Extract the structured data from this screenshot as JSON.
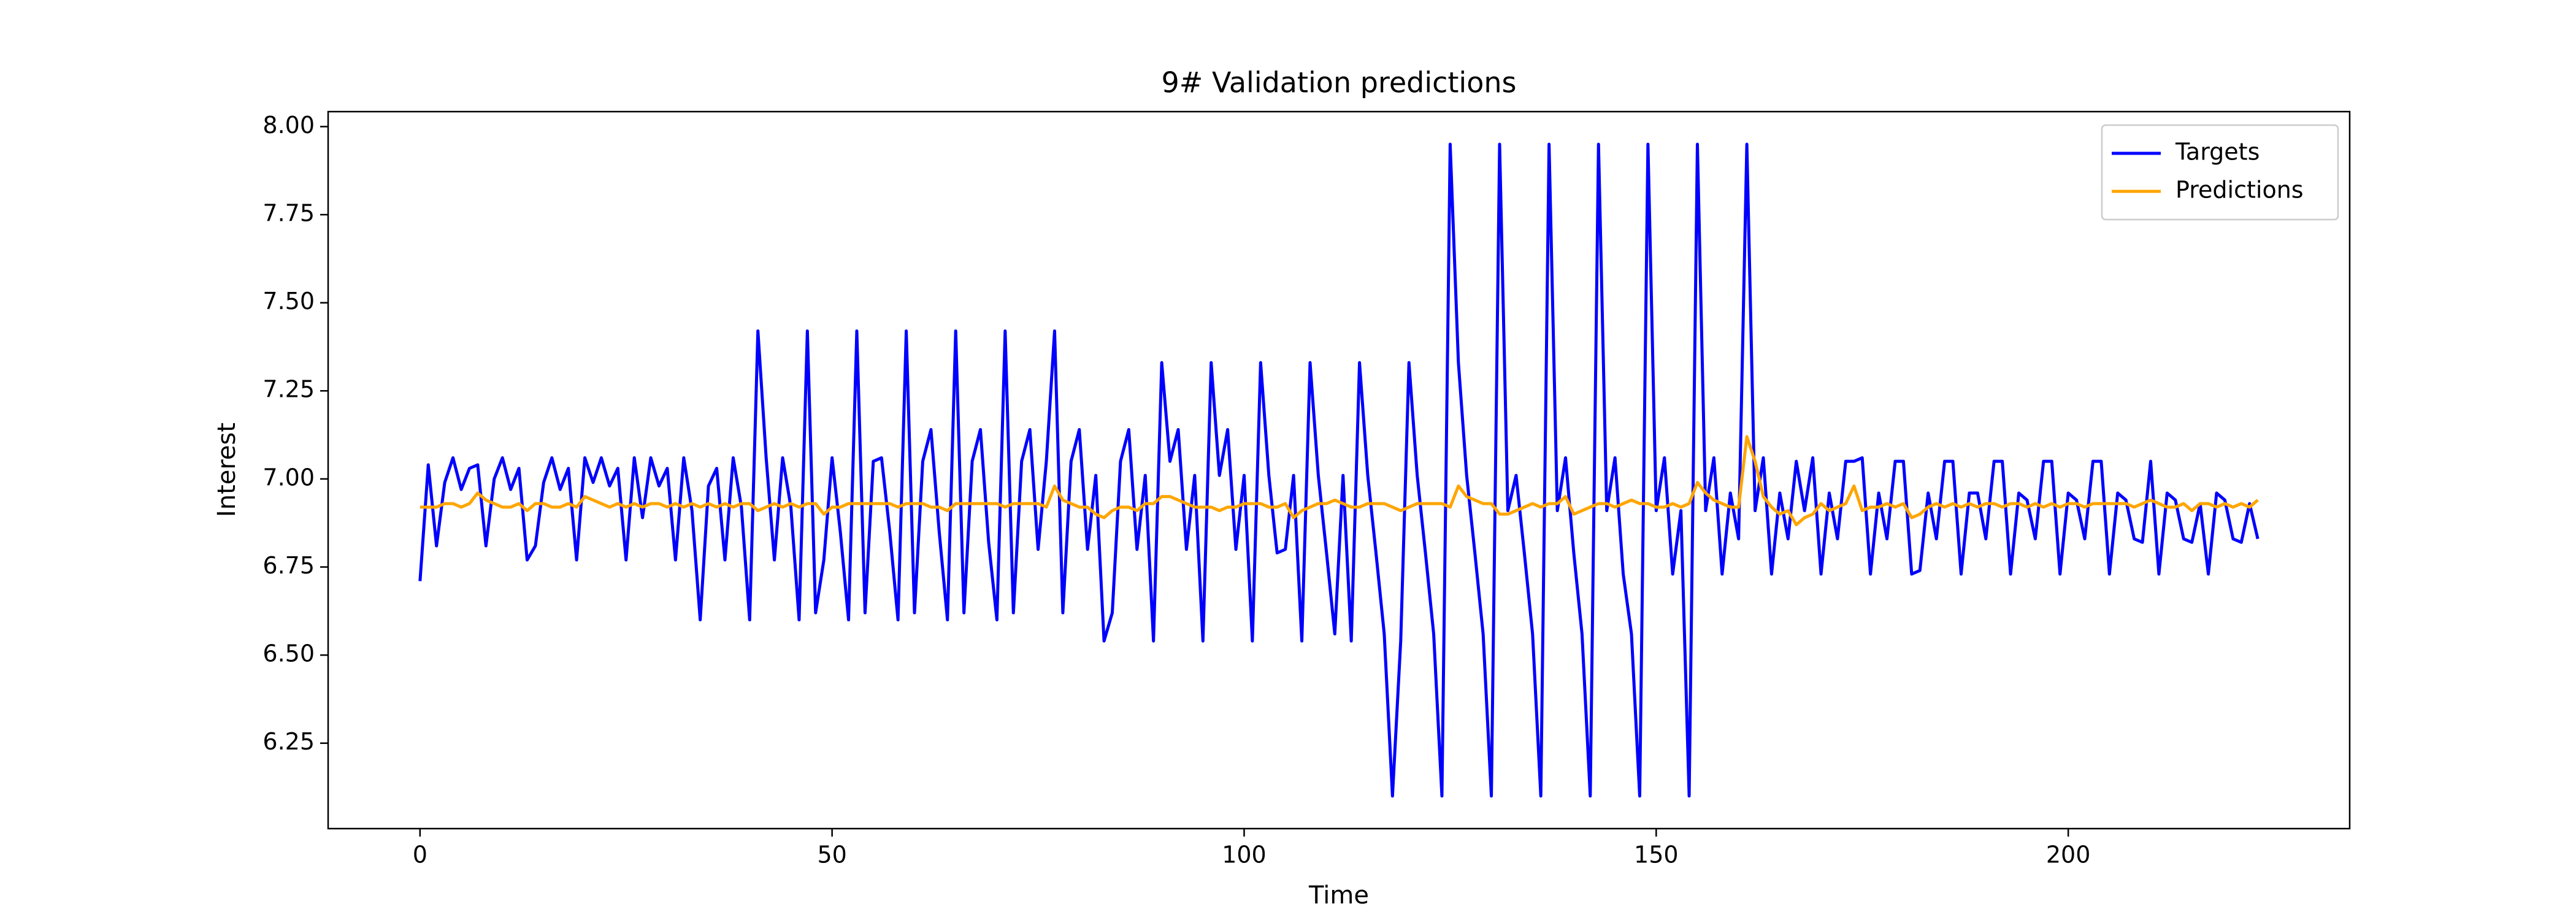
{
  "chart_data": {
    "type": "line",
    "title": "9# Validation predictions",
    "x_label": "Time",
    "y_label": "Interest",
    "x": [
      0,
      1,
      2,
      3,
      4,
      5,
      6,
      7,
      8,
      9,
      10,
      11,
      12,
      13,
      14,
      15,
      16,
      17,
      18,
      19,
      20,
      21,
      22,
      23,
      24,
      25,
      26,
      27,
      28,
      29,
      30,
      31,
      32,
      33,
      34,
      35,
      36,
      37,
      38,
      39,
      40,
      41,
      42,
      43,
      44,
      45,
      46,
      47,
      48,
      49,
      50,
      51,
      52,
      53,
      54,
      55,
      56,
      57,
      58,
      59,
      60,
      61,
      62,
      63,
      64,
      65,
      66,
      67,
      68,
      69,
      70,
      71,
      72,
      73,
      74,
      75,
      76,
      77,
      78,
      79,
      80,
      81,
      82,
      83,
      84,
      85,
      86,
      87,
      88,
      89,
      90,
      91,
      92,
      93,
      94,
      95,
      96,
      97,
      98,
      99,
      100,
      101,
      102,
      103,
      104,
      105,
      106,
      107,
      108,
      109,
      110,
      111,
      112,
      113,
      114,
      115,
      116,
      117,
      118,
      119,
      120,
      121,
      122,
      123,
      124,
      125,
      126,
      127,
      128,
      129,
      130,
      131,
      132,
      133,
      134,
      135,
      136,
      137,
      138,
      139,
      140,
      141,
      142,
      143,
      144,
      145,
      146,
      147,
      148,
      149,
      150,
      151,
      152,
      153,
      154,
      155,
      156,
      157,
      158,
      159,
      160,
      161,
      162,
      163,
      164,
      165,
      166,
      167,
      168,
      169,
      170,
      171,
      172,
      173,
      174,
      175,
      176,
      177,
      178,
      179,
      180,
      181,
      182,
      183,
      184,
      185,
      186,
      187,
      188,
      189,
      190,
      191,
      192,
      193,
      194,
      195,
      196,
      197,
      198,
      199,
      200,
      201,
      202,
      203,
      204,
      205,
      206,
      207,
      208,
      209,
      210,
      211,
      212,
      213,
      214,
      215,
      216,
      217,
      218,
      219,
      220,
      221,
      222,
      223
    ],
    "series": [
      {
        "name": "Targets",
        "color": "#0000ff",
        "values": [
          6.71,
          7.04,
          6.81,
          6.99,
          7.06,
          6.97,
          7.03,
          7.04,
          6.81,
          7.0,
          7.06,
          6.97,
          7.03,
          6.77,
          6.81,
          6.99,
          7.06,
          6.97,
          7.03,
          6.77,
          7.06,
          6.99,
          7.06,
          6.98,
          7.03,
          6.77,
          7.06,
          6.89,
          7.06,
          6.98,
          7.03,
          6.77,
          7.06,
          6.91,
          6.6,
          6.98,
          7.03,
          6.77,
          7.06,
          6.92,
          6.6,
          7.42,
          7.06,
          6.77,
          7.06,
          6.92,
          6.6,
          7.42,
          6.62,
          6.77,
          7.06,
          6.85,
          6.6,
          7.42,
          6.62,
          7.05,
          7.06,
          6.85,
          6.6,
          7.42,
          6.62,
          7.05,
          7.14,
          6.85,
          6.6,
          7.42,
          6.62,
          7.05,
          7.14,
          6.82,
          6.6,
          7.42,
          6.62,
          7.05,
          7.14,
          6.8,
          7.05,
          7.42,
          6.62,
          7.05,
          7.14,
          6.8,
          7.01,
          6.54,
          6.62,
          7.05,
          7.14,
          6.8,
          7.01,
          6.54,
          7.33,
          7.05,
          7.14,
          6.8,
          7.01,
          6.54,
          7.33,
          7.01,
          7.14,
          6.8,
          7.01,
          6.54,
          7.33,
          7.01,
          6.79,
          6.8,
          7.01,
          6.54,
          7.33,
          7.01,
          6.79,
          6.56,
          7.01,
          6.54,
          7.33,
          7.01,
          6.79,
          6.56,
          6.1,
          6.54,
          7.33,
          7.01,
          6.79,
          6.56,
          6.1,
          7.95,
          7.33,
          7.01,
          6.79,
          6.56,
          6.1,
          7.95,
          6.91,
          7.01,
          6.79,
          6.56,
          6.1,
          7.95,
          6.91,
          7.06,
          6.79,
          6.56,
          6.1,
          7.95,
          6.91,
          7.06,
          6.73,
          6.56,
          6.1,
          7.95,
          6.91,
          7.06,
          6.73,
          6.91,
          6.1,
          7.95,
          6.91,
          7.06,
          6.73,
          6.96,
          6.83,
          7.95,
          6.91,
          7.06,
          6.73,
          6.96,
          6.83,
          7.05,
          6.91,
          7.06,
          6.73,
          6.96,
          6.83,
          7.05,
          7.05,
          7.06,
          6.73,
          6.96,
          6.83,
          7.05,
          7.05,
          6.73,
          6.74,
          6.96,
          6.83,
          7.05,
          7.05,
          6.73,
          6.96,
          6.96,
          6.83,
          7.05,
          7.05,
          6.73,
          6.96,
          6.94,
          6.83,
          7.05,
          7.05,
          6.73,
          6.96,
          6.94,
          6.83,
          7.05,
          7.05,
          6.73,
          6.96,
          6.94,
          6.83,
          6.82,
          7.05,
          6.73,
          6.96,
          6.94,
          6.83,
          6.82,
          6.93,
          6.73,
          6.96,
          6.94,
          6.83,
          6.82,
          6.93,
          6.83
        ]
      },
      {
        "name": "Predictions",
        "color": "#ffa500",
        "values": [
          6.92,
          6.92,
          6.92,
          6.93,
          6.93,
          6.92,
          6.93,
          6.96,
          6.94,
          6.93,
          6.92,
          6.92,
          6.93,
          6.91,
          6.93,
          6.93,
          6.92,
          6.92,
          6.93,
          6.92,
          6.95,
          6.94,
          6.93,
          6.92,
          6.93,
          6.92,
          6.93,
          6.92,
          6.93,
          6.93,
          6.92,
          6.93,
          6.92,
          6.93,
          6.92,
          6.93,
          6.92,
          6.93,
          6.92,
          6.93,
          6.93,
          6.91,
          6.92,
          6.93,
          6.92,
          6.93,
          6.92,
          6.93,
          6.93,
          6.9,
          6.92,
          6.92,
          6.93,
          6.93,
          6.93,
          6.93,
          6.93,
          6.93,
          6.92,
          6.93,
          6.93,
          6.93,
          6.92,
          6.92,
          6.91,
          6.93,
          6.93,
          6.93,
          6.93,
          6.93,
          6.93,
          6.92,
          6.93,
          6.93,
          6.93,
          6.93,
          6.92,
          6.98,
          6.94,
          6.93,
          6.92,
          6.92,
          6.9,
          6.89,
          6.91,
          6.92,
          6.92,
          6.91,
          6.93,
          6.93,
          6.95,
          6.95,
          6.94,
          6.93,
          6.92,
          6.92,
          6.92,
          6.91,
          6.92,
          6.92,
          6.93,
          6.93,
          6.93,
          6.92,
          6.92,
          6.93,
          6.89,
          6.91,
          6.92,
          6.93,
          6.93,
          6.94,
          6.93,
          6.92,
          6.92,
          6.93,
          6.93,
          6.93,
          6.92,
          6.91,
          6.92,
          6.93,
          6.93,
          6.93,
          6.93,
          6.92,
          6.98,
          6.95,
          6.94,
          6.93,
          6.93,
          6.9,
          6.9,
          6.91,
          6.92,
          6.93,
          6.92,
          6.93,
          6.93,
          6.95,
          6.9,
          6.91,
          6.92,
          6.93,
          6.93,
          6.92,
          6.93,
          6.94,
          6.93,
          6.93,
          6.92,
          6.92,
          6.93,
          6.92,
          6.93,
          6.99,
          6.96,
          6.94,
          6.93,
          6.92,
          6.92,
          7.12,
          7.05,
          6.95,
          6.92,
          6.9,
          6.91,
          6.87,
          6.89,
          6.9,
          6.93,
          6.91,
          6.92,
          6.93,
          6.98,
          6.91,
          6.92,
          6.92,
          6.93,
          6.92,
          6.93,
          6.89,
          6.9,
          6.92,
          6.93,
          6.92,
          6.93,
          6.92,
          6.93,
          6.92,
          6.93,
          6.93,
          6.92,
          6.93,
          6.93,
          6.92,
          6.93,
          6.92,
          6.93,
          6.92,
          6.93,
          6.93,
          6.92,
          6.93,
          6.93,
          6.93,
          6.93,
          6.93,
          6.92,
          6.93,
          6.94,
          6.93,
          6.92,
          6.92,
          6.93,
          6.91,
          6.93,
          6.93,
          6.92,
          6.93,
          6.92,
          6.93,
          6.92,
          6.94
        ]
      }
    ],
    "xlim": [
      -11.15,
      234.15
    ],
    "xticks": [
      0,
      50,
      100,
      150,
      200
    ],
    "ylim": [
      6.0075,
      8.0425
    ],
    "yticks": [
      6.25,
      {
        "value": 6.5,
        "label": "6.50"
      },
      6.75,
      {
        "value": 7,
        "label": "7.00"
      },
      7.25,
      {
        "value": 7.5,
        "label": "7.50"
      },
      7.75,
      {
        "value": 8,
        "label": "8.00"
      }
    ],
    "grid": false,
    "legend": "upper right"
  }
}
